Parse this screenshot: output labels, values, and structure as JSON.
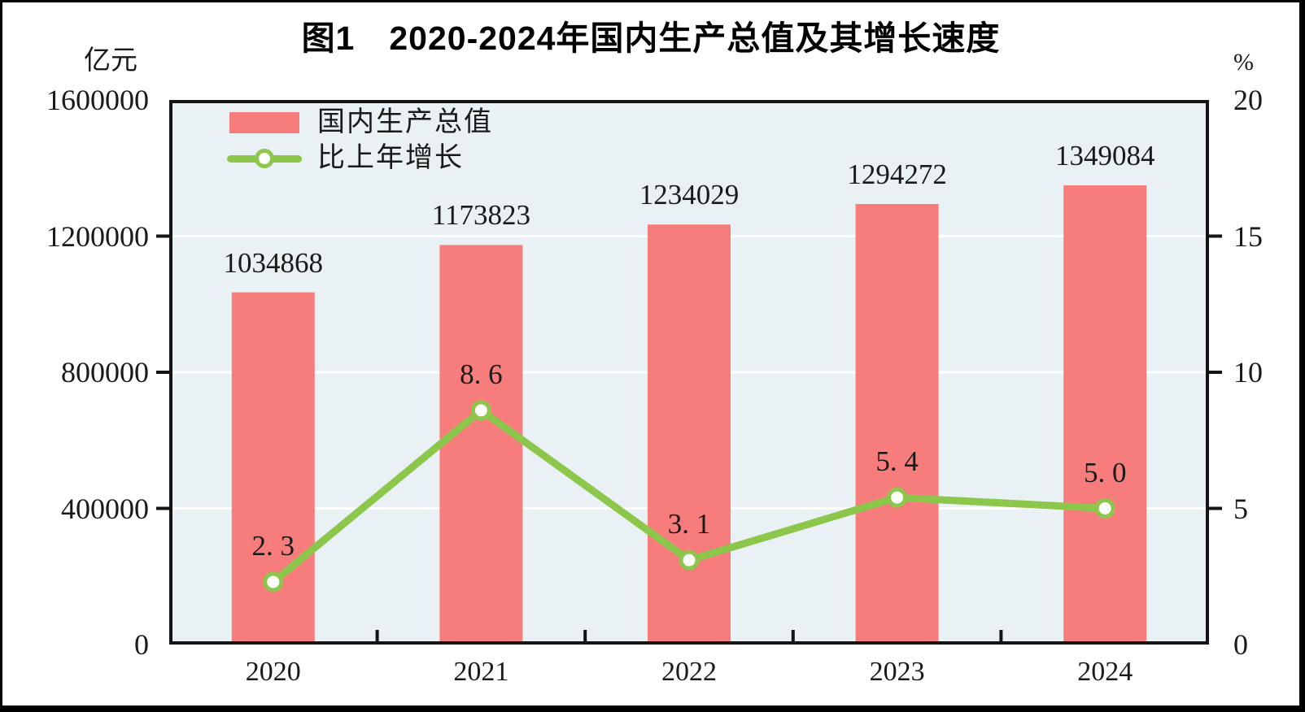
{
  "title": "图1　2020-2024年国内生产总值及其增长速度",
  "left_axis": {
    "unit": "亿元",
    "tick_labels": [
      "1600000",
      "1200000",
      "800000",
      "400000",
      "0"
    ]
  },
  "right_axis": {
    "unit": "%",
    "tick_labels": [
      "20",
      "15",
      "10",
      "5",
      "0"
    ]
  },
  "legend": {
    "position": "top-left-inside",
    "items": [
      {
        "label": "国内生产总值",
        "swatch": "bar"
      },
      {
        "label": "比上年增长",
        "swatch": "line-marker"
      }
    ]
  },
  "colors": {
    "bar": "#f77c7c",
    "line": "#8cc64a",
    "marker_fill": "#ffffff",
    "plot_bg": "#e9f1f5",
    "gridline": "#ffffff",
    "axis": "#141414",
    "text": "#1a1a1a"
  },
  "chart_data": {
    "type": "bar",
    "subtype": "bar-line combo with dual y-axes",
    "title": "图1　2020-2024年国内生产总值及其增长速度",
    "categories": [
      "2020",
      "2021",
      "2022",
      "2023",
      "2024"
    ],
    "series": [
      {
        "name": "国内生产总值",
        "type": "bar",
        "axis": "left",
        "unit": "亿元",
        "color": "#f77c7c",
        "values": [
          1034868,
          1173823,
          1234029,
          1294272,
          1349084
        ],
        "data_labels": [
          "1034868",
          "1173823",
          "1234029",
          "1294272",
          "1349084"
        ]
      },
      {
        "name": "比上年增长",
        "type": "line",
        "axis": "right",
        "unit": "%",
        "color": "#8cc64a",
        "values": [
          2.3,
          8.6,
          3.1,
          5.4,
          5.0
        ],
        "data_labels": [
          "2. 3",
          "8. 6",
          "3. 1",
          "5. 4",
          "5. 0"
        ]
      }
    ],
    "ylim_left": [
      0,
      1600000
    ],
    "ylim_right": [
      0,
      20
    ],
    "ytick_step_left": 400000,
    "ytick_step_right": 5,
    "grid": true,
    "gridlines": "horizontal white lines at interior left-axis ticks",
    "legend_position": "top-left-inside"
  }
}
